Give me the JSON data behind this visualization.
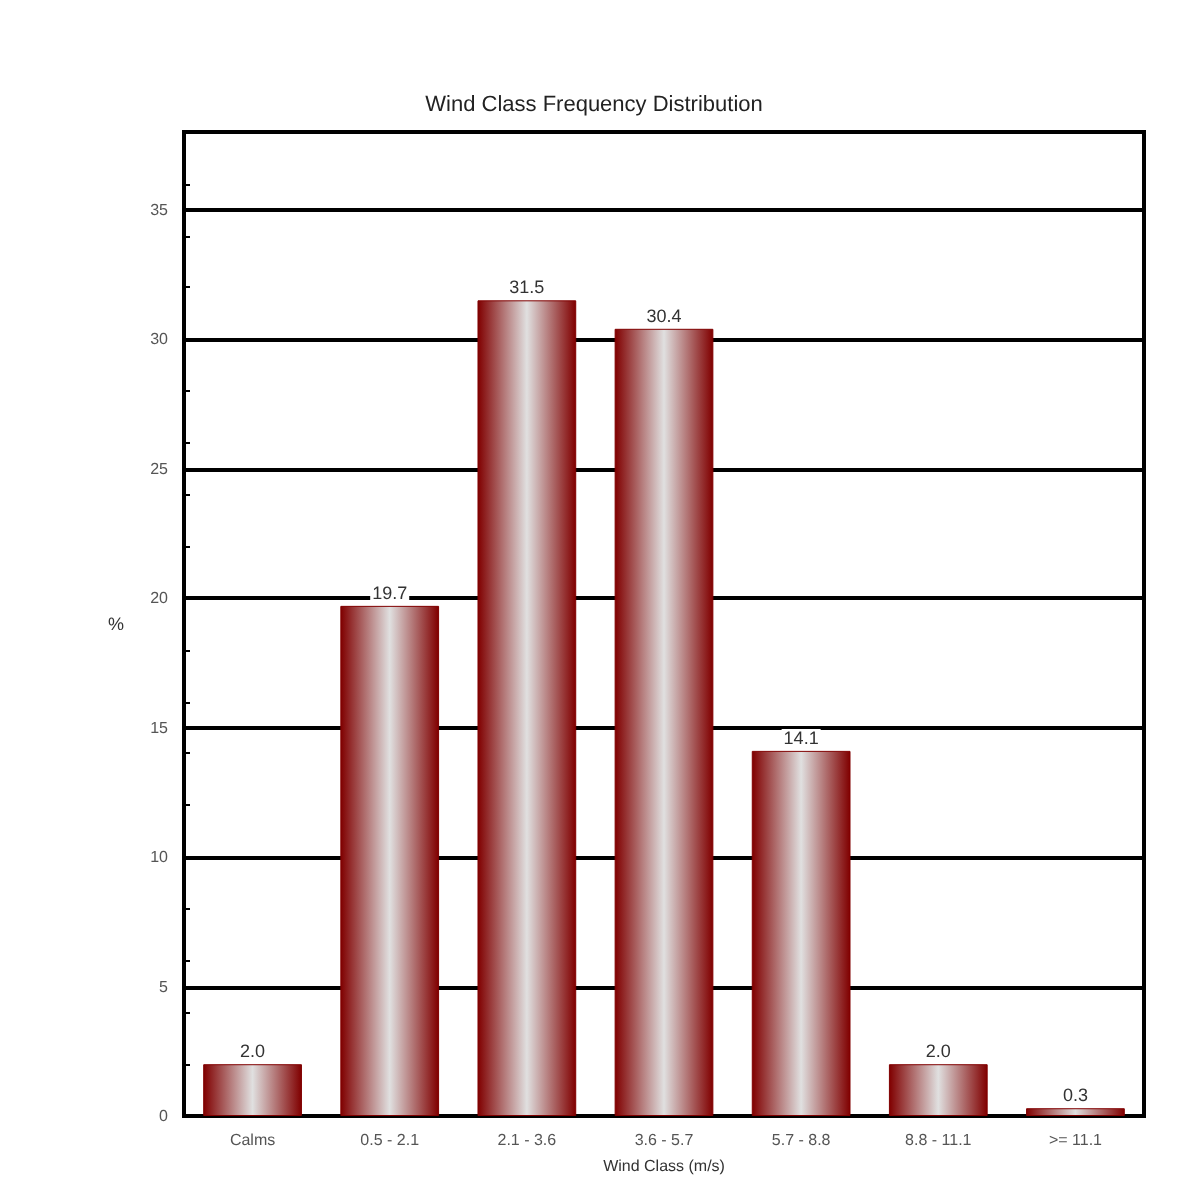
{
  "chart_data": {
    "type": "bar",
    "title": "Wind Class Frequency Distribution",
    "xlabel": "Wind Class (m/s)",
    "ylabel": "%",
    "categories": [
      "Calms",
      "0.5 - 2.1",
      "2.1 - 3.6",
      "3.6 - 5.7",
      "5.7 - 8.8",
      "8.8 - 11.1",
      ">= 11.1"
    ],
    "values": [
      2.0,
      19.7,
      31.5,
      30.4,
      14.1,
      2.0,
      0.3
    ],
    "color": "#800000",
    "ylim": [
      0,
      38
    ],
    "yticks": [
      0,
      5,
      10,
      15,
      20,
      25,
      30,
      35
    ],
    "grid": "y",
    "value_labels": [
      "2.0",
      "19.7",
      "31.5",
      "30.4",
      "14.1",
      "2.0",
      "0.3"
    ]
  }
}
